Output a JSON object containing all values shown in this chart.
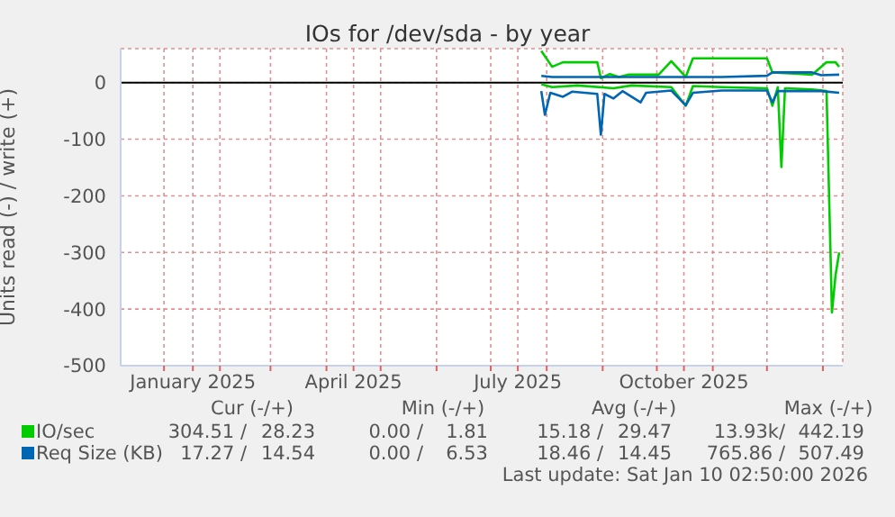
{
  "chart_data": {
    "type": "line",
    "title": "IOs for /dev/sda - by year",
    "ylabel": "Units read (-) / write (+)",
    "xlim": [
      "2024-12-08",
      "2026-01-12"
    ],
    "xticks": [
      {
        "value": "2025-01-01",
        "label": null
      },
      {
        "value": "2025-01-17",
        "label": "January 2025"
      },
      {
        "value": "2025-02-01",
        "label": null
      },
      {
        "value": "2025-03-01",
        "label": null
      },
      {
        "value": "2025-04-01",
        "label": null
      },
      {
        "value": "2025-04-16",
        "label": "April 2025"
      },
      {
        "value": "2025-05-01",
        "label": null
      },
      {
        "value": "2025-06-01",
        "label": null
      },
      {
        "value": "2025-07-01",
        "label": null
      },
      {
        "value": "2025-07-16",
        "label": "July 2025"
      },
      {
        "value": "2025-08-01",
        "label": null
      },
      {
        "value": "2025-09-01",
        "label": null
      },
      {
        "value": "2025-10-01",
        "label": null
      },
      {
        "value": "2025-10-16",
        "label": "October 2025"
      },
      {
        "value": "2025-11-01",
        "label": null
      },
      {
        "value": "2025-12-01",
        "label": null
      },
      {
        "value": "2026-01-01",
        "label": null
      }
    ],
    "ylim": [
      -500,
      60
    ],
    "yticks": [
      -500,
      -400,
      -300,
      -200,
      -100,
      0
    ],
    "grid": true,
    "legend": "bottom left",
    "marker": "none",
    "line_style": "solid",
    "ref_lines": [
      {
        "axis": "y",
        "value": 0,
        "color": "#000000"
      }
    ],
    "series": [
      {
        "name": "IO/sec",
        "color": "#00cc00",
        "x": [
          "2025-07-29",
          "2025-08-04",
          "2025-08-10",
          "2025-08-29",
          "2025-08-31",
          "2025-09-05",
          "2025-09-10",
          "2025-09-15",
          "2025-10-02",
          "2025-10-09",
          "2025-10-17",
          "2025-10-21",
          "2025-12-01",
          "2025-12-04",
          "2025-12-16",
          "2025-12-26",
          "2026-01-03",
          "2026-01-08",
          "2026-01-10"
        ],
        "values": [
          56,
          28,
          36,
          36,
          8,
          15,
          10,
          14,
          14,
          38,
          10,
          43,
          43,
          18,
          16,
          14,
          36,
          36,
          28
        ]
      },
      {
        "name": "Req Size (KB)",
        "color": "#0066b3",
        "x": [
          "2025-07-29",
          "2025-08-04",
          "2025-10-17",
          "2025-11-06",
          "2025-12-01",
          "2025-12-04",
          "2025-12-26",
          "2025-12-31",
          "2026-01-10"
        ],
        "values": [
          12,
          10,
          10,
          10,
          12,
          18,
          18,
          13,
          14
        ]
      },
      {
        "color": "#00cc00",
        "x": [
          "2025-07-29",
          "2025-08-04",
          "2025-08-18",
          "2025-09-07",
          "2025-09-17",
          "2025-10-09",
          "2025-10-17",
          "2025-10-21",
          "2025-11-06",
          "2025-12-01",
          "2025-12-04",
          "2025-12-07",
          "2025-12-09",
          "2025-12-11",
          "2025-12-26",
          "2026-01-03",
          "2026-01-06",
          "2026-01-08",
          "2026-01-10"
        ],
        "values": [
          -3,
          -8,
          -5,
          -10,
          -5,
          -8,
          -41,
          -6,
          -8,
          -10,
          -41,
          -8,
          -149,
          -10,
          -12,
          -15,
          -406,
          -340,
          -300
        ]
      },
      {
        "color": "#0066b3",
        "x": [
          "2025-07-29",
          "2025-07-31",
          "2025-08-03",
          "2025-08-10",
          "2025-08-15",
          "2025-08-29",
          "2025-08-31",
          "2025-09-02",
          "2025-09-07",
          "2025-09-12",
          "2025-09-22",
          "2025-09-25",
          "2025-10-09",
          "2025-10-17",
          "2025-10-21",
          "2025-11-06",
          "2025-12-01",
          "2025-12-04",
          "2025-12-07",
          "2025-12-31",
          "2026-01-10"
        ],
        "values": [
          -15,
          -57,
          -18,
          -25,
          -16,
          -20,
          -92,
          -20,
          -28,
          -15,
          -35,
          -18,
          -14,
          -40,
          -18,
          -14,
          -14,
          -35,
          -15,
          -15,
          -18
        ]
      }
    ],
    "annotations": [
      "Cur (-/+)",
      "Min (-/+)",
      "Avg (-/+)",
      "Max (-/+)",
      "304.51 /",
      "28.23",
      "0.00 /",
      "1.81",
      "15.18 /",
      "29.47",
      "13.93k/",
      "442.19",
      "17.27 /",
      "14.54",
      "0.00 /",
      "6.53",
      "18.46 /",
      "14.45",
      "765.86 /",
      "507.49",
      "Last update: Sat Jan 10 02:50:00 2026"
    ]
  }
}
